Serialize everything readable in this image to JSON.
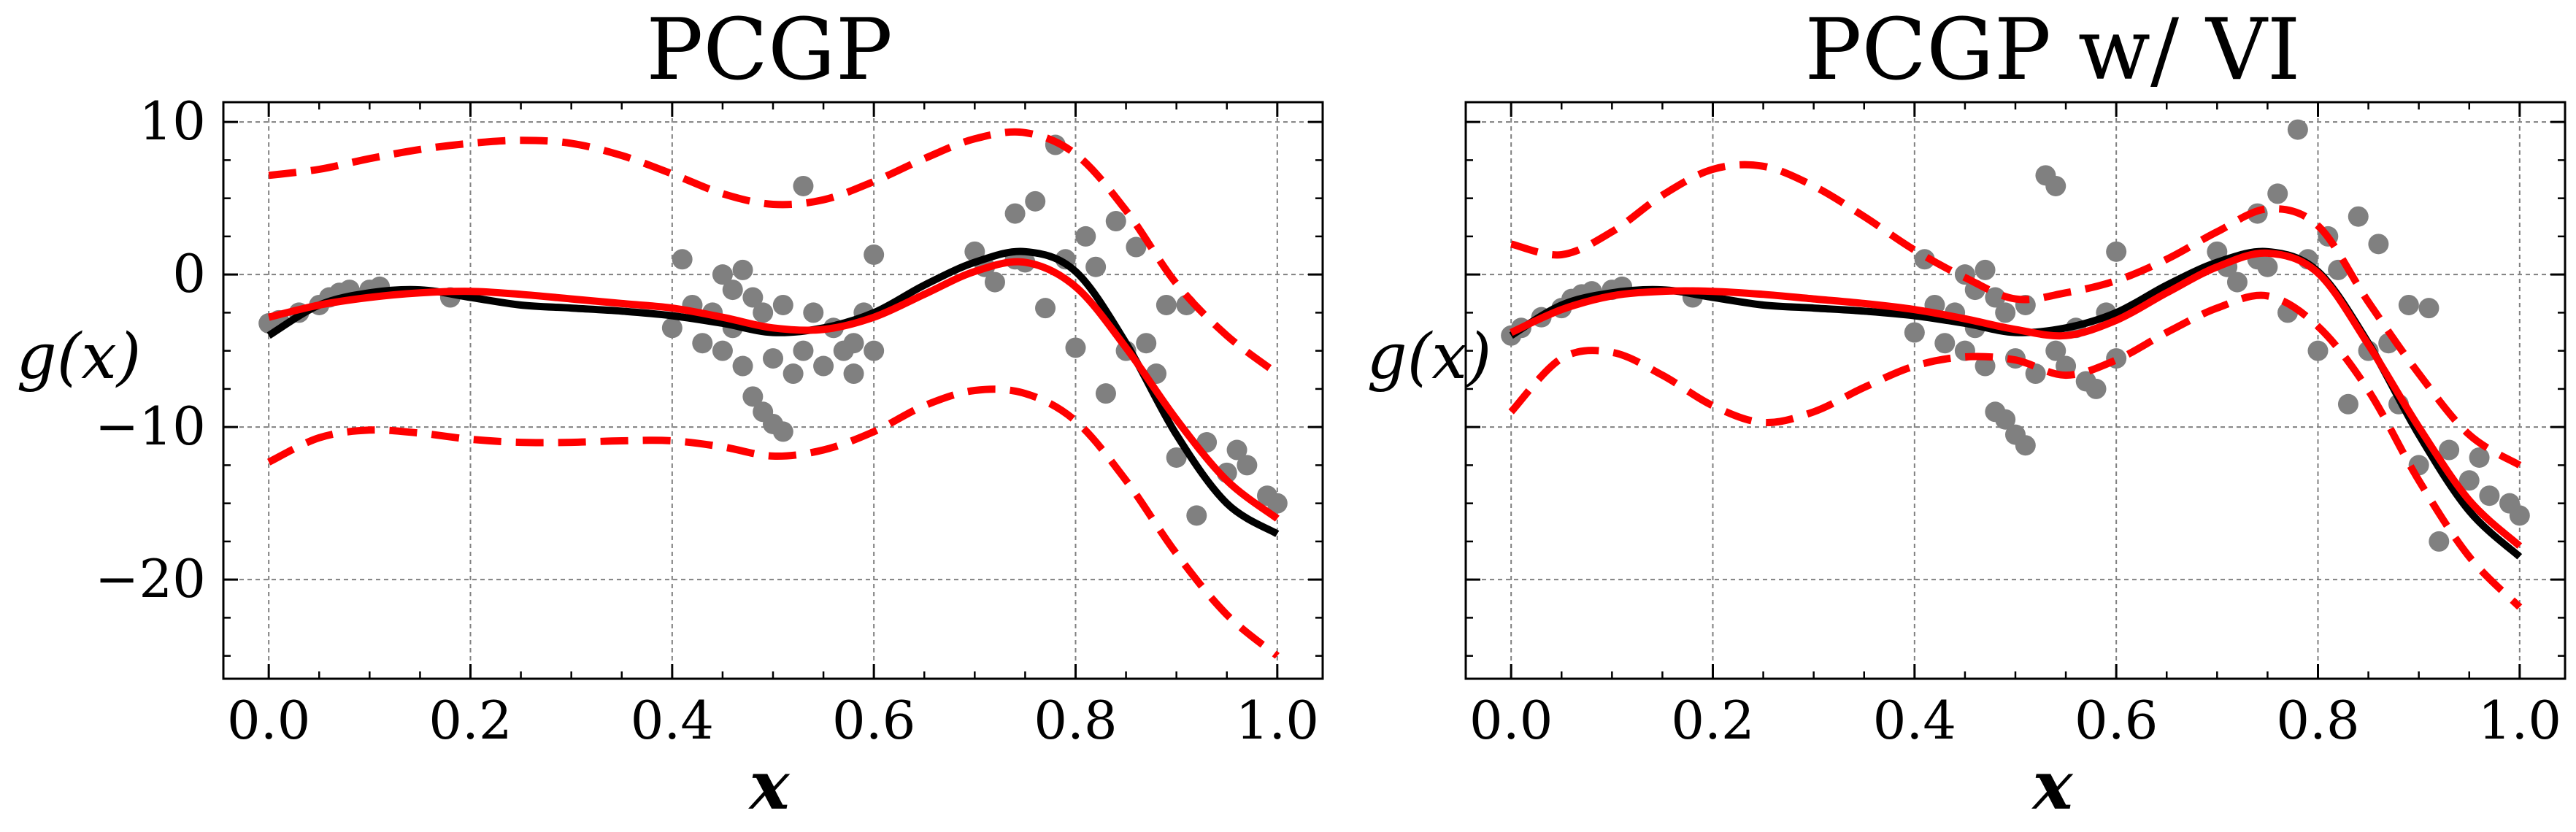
{
  "colors": {
    "truth": "#000000",
    "mean": "#ff0000",
    "band": "#ff0000",
    "points": "#808080",
    "grid": "#808080"
  },
  "chart_data": [
    {
      "type": "line",
      "title": "PCGP",
      "xlabel": "x",
      "ylabel": "g(x)",
      "xlim": [
        -0.045,
        1.045
      ],
      "ylim": [
        -26.5,
        11.3
      ],
      "xticks": [
        0.0,
        0.2,
        0.4,
        0.6,
        0.8,
        1.0
      ],
      "xtick_labels": [
        "0.0",
        "0.2",
        "0.4",
        "0.6",
        "0.8",
        "1.0"
      ],
      "yticks": [
        10,
        0,
        -10,
        -20
      ],
      "ytick_labels": [
        "10",
        "0",
        "−10",
        "−20"
      ],
      "show_ytick_labels": true,
      "grid": true,
      "series": [
        {
          "role": "truth",
          "style": "solid",
          "x": [
            0.0,
            0.05,
            0.1,
            0.15,
            0.2,
            0.25,
            0.3,
            0.35,
            0.4,
            0.45,
            0.5,
            0.55,
            0.6,
            0.65,
            0.7,
            0.75,
            0.8,
            0.85,
            0.9,
            0.95,
            1.0
          ],
          "y": [
            -4.0,
            -2.0,
            -1.2,
            -1.0,
            -1.5,
            -2.0,
            -2.2,
            -2.4,
            -2.7,
            -3.2,
            -3.8,
            -3.5,
            -2.5,
            -0.7,
            0.8,
            1.5,
            0.2,
            -4.5,
            -10.5,
            -15.0,
            -17.0
          ]
        },
        {
          "role": "mean",
          "style": "solid",
          "x": [
            0.0,
            0.05,
            0.1,
            0.15,
            0.2,
            0.25,
            0.3,
            0.35,
            0.4,
            0.45,
            0.5,
            0.55,
            0.6,
            0.65,
            0.7,
            0.75,
            0.8,
            0.85,
            0.9,
            0.95,
            1.0
          ],
          "y": [
            -2.8,
            -2.0,
            -1.5,
            -1.2,
            -1.1,
            -1.3,
            -1.6,
            -1.9,
            -2.2,
            -2.8,
            -3.5,
            -3.6,
            -2.8,
            -1.3,
            0.2,
            0.8,
            -0.8,
            -4.8,
            -9.5,
            -13.5,
            -16.0
          ]
        },
        {
          "role": "upper",
          "style": "dashed",
          "x": [
            0.0,
            0.05,
            0.1,
            0.15,
            0.2,
            0.25,
            0.3,
            0.35,
            0.4,
            0.45,
            0.5,
            0.55,
            0.6,
            0.65,
            0.7,
            0.75,
            0.8,
            0.85,
            0.9,
            0.95,
            1.0
          ],
          "y": [
            6.5,
            6.9,
            7.6,
            8.2,
            8.6,
            8.8,
            8.6,
            7.8,
            6.6,
            5.3,
            4.6,
            4.9,
            6.1,
            7.6,
            8.9,
            9.3,
            7.9,
            4.2,
            -0.6,
            -4.0,
            -6.5
          ]
        },
        {
          "role": "lower",
          "style": "dashed",
          "x": [
            0.0,
            0.05,
            0.1,
            0.15,
            0.2,
            0.25,
            0.3,
            0.35,
            0.4,
            0.45,
            0.5,
            0.55,
            0.6,
            0.65,
            0.7,
            0.75,
            0.8,
            0.85,
            0.9,
            0.95,
            1.0
          ],
          "y": [
            -12.3,
            -10.7,
            -10.2,
            -10.4,
            -10.8,
            -11.0,
            -11.0,
            -10.9,
            -10.9,
            -11.3,
            -11.9,
            -11.5,
            -10.3,
            -8.6,
            -7.6,
            -7.8,
            -9.6,
            -13.5,
            -18.3,
            -22.3,
            -25.0
          ]
        }
      ],
      "points": {
        "x": [
          0.0,
          0.01,
          0.03,
          0.05,
          0.06,
          0.07,
          0.08,
          0.1,
          0.11,
          0.18,
          0.41,
          0.4,
          0.42,
          0.43,
          0.44,
          0.45,
          0.45,
          0.46,
          0.46,
          0.47,
          0.47,
          0.48,
          0.48,
          0.49,
          0.49,
          0.5,
          0.5,
          0.51,
          0.51,
          0.52,
          0.53,
          0.53,
          0.54,
          0.55,
          0.56,
          0.57,
          0.58,
          0.58,
          0.59,
          0.6,
          0.6,
          0.7,
          0.71,
          0.72,
          0.74,
          0.74,
          0.75,
          0.76,
          0.77,
          0.78,
          0.79,
          0.8,
          0.81,
          0.82,
          0.83,
          0.84,
          0.85,
          0.86,
          0.87,
          0.88,
          0.89,
          0.9,
          0.91,
          0.92,
          0.93,
          0.95,
          0.96,
          0.97,
          0.99,
          1.0
        ],
        "y": [
          -3.2,
          -3.0,
          -2.5,
          -2.0,
          -1.5,
          -1.2,
          -1.0,
          -1.0,
          -0.8,
          -1.5,
          1.0,
          -3.5,
          -2.0,
          -4.5,
          -2.5,
          -5.0,
          0.0,
          -1.0,
          -3.5,
          0.3,
          -6.0,
          -1.5,
          -8.0,
          -2.5,
          -9.0,
          -5.5,
          -9.8,
          -2.0,
          -10.3,
          -6.5,
          5.8,
          -5.0,
          -2.5,
          -6.0,
          -3.5,
          -5.0,
          -4.5,
          -6.5,
          -2.5,
          1.3,
          -5.0,
          1.5,
          0.5,
          -0.5,
          4.0,
          1.0,
          0.8,
          4.8,
          -2.2,
          8.5,
          1.0,
          -4.8,
          2.5,
          0.5,
          -7.8,
          3.5,
          -5.0,
          1.8,
          -4.5,
          -6.5,
          -2.0,
          -12.0,
          -2.0,
          -15.8,
          -11.0,
          -13.0,
          -11.5,
          -12.5,
          -14.5,
          -15.0
        ]
      }
    },
    {
      "type": "line",
      "title": "PCGP w/ VI",
      "xlabel": "x",
      "ylabel": "g(x)",
      "xlim": [
        -0.045,
        1.045
      ],
      "ylim": [
        -26.5,
        11.3
      ],
      "xticks": [
        0.0,
        0.2,
        0.4,
        0.6,
        0.8,
        1.0
      ],
      "xtick_labels": [
        "0.0",
        "0.2",
        "0.4",
        "0.6",
        "0.8",
        "1.0"
      ],
      "yticks": [
        10,
        0,
        -10,
        -20
      ],
      "ytick_labels": [
        "10",
        "0",
        "−10",
        "−20"
      ],
      "show_ytick_labels": false,
      "grid": true,
      "series": [
        {
          "role": "truth",
          "style": "solid",
          "x": [
            0.0,
            0.05,
            0.1,
            0.15,
            0.2,
            0.25,
            0.3,
            0.35,
            0.4,
            0.45,
            0.5,
            0.55,
            0.6,
            0.65,
            0.7,
            0.75,
            0.8,
            0.85,
            0.9,
            0.95,
            1.0
          ],
          "y": [
            -4.0,
            -2.0,
            -1.2,
            -1.0,
            -1.5,
            -2.0,
            -2.2,
            -2.4,
            -2.7,
            -3.2,
            -3.8,
            -3.5,
            -2.5,
            -0.7,
            0.8,
            1.5,
            0.2,
            -4.5,
            -10.5,
            -15.5,
            -18.5
          ]
        },
        {
          "role": "mean",
          "style": "solid",
          "x": [
            0.0,
            0.05,
            0.1,
            0.15,
            0.2,
            0.25,
            0.3,
            0.35,
            0.4,
            0.45,
            0.5,
            0.55,
            0.6,
            0.65,
            0.7,
            0.75,
            0.8,
            0.85,
            0.9,
            0.95,
            1.0
          ],
          "y": [
            -3.8,
            -2.3,
            -1.4,
            -1.1,
            -1.1,
            -1.3,
            -1.6,
            -1.9,
            -2.3,
            -2.9,
            -3.6,
            -4.0,
            -3.0,
            -1.2,
            0.5,
            1.4,
            0.1,
            -4.6,
            -10.0,
            -14.8,
            -17.8
          ]
        },
        {
          "role": "upper",
          "style": "dashed",
          "x": [
            0.0,
            0.05,
            0.1,
            0.15,
            0.2,
            0.25,
            0.3,
            0.35,
            0.4,
            0.45,
            0.5,
            0.55,
            0.6,
            0.65,
            0.7,
            0.75,
            0.8,
            0.85,
            0.9,
            0.95,
            1.0
          ],
          "y": [
            2.0,
            1.3,
            2.8,
            5.2,
            6.9,
            7.1,
            5.8,
            3.8,
            1.6,
            -0.2,
            -1.6,
            -1.2,
            -0.4,
            1.0,
            2.8,
            4.3,
            3.2,
            -1.8,
            -6.5,
            -10.5,
            -12.5
          ]
        },
        {
          "role": "lower",
          "style": "dashed",
          "x": [
            0.0,
            0.05,
            0.1,
            0.15,
            0.2,
            0.25,
            0.3,
            0.35,
            0.4,
            0.45,
            0.5,
            0.55,
            0.6,
            0.65,
            0.7,
            0.75,
            0.8,
            0.85,
            0.9,
            0.95,
            1.0
          ],
          "y": [
            -9.0,
            -5.5,
            -5.1,
            -6.6,
            -8.6,
            -9.7,
            -9.0,
            -7.4,
            -6.0,
            -5.4,
            -5.6,
            -6.6,
            -5.6,
            -3.8,
            -2.2,
            -1.4,
            -3.4,
            -7.6,
            -13.5,
            -18.5,
            -21.8
          ]
        }
      ],
      "points": {
        "x": [
          0.0,
          0.01,
          0.03,
          0.05,
          0.06,
          0.07,
          0.08,
          0.1,
          0.11,
          0.18,
          0.4,
          0.41,
          0.42,
          0.43,
          0.44,
          0.45,
          0.45,
          0.46,
          0.46,
          0.47,
          0.47,
          0.48,
          0.48,
          0.49,
          0.49,
          0.5,
          0.5,
          0.51,
          0.51,
          0.52,
          0.53,
          0.54,
          0.54,
          0.55,
          0.56,
          0.57,
          0.58,
          0.59,
          0.6,
          0.6,
          0.7,
          0.71,
          0.72,
          0.74,
          0.74,
          0.75,
          0.76,
          0.77,
          0.78,
          0.79,
          0.8,
          0.81,
          0.82,
          0.83,
          0.84,
          0.85,
          0.86,
          0.87,
          0.88,
          0.89,
          0.9,
          0.91,
          0.92,
          0.93,
          0.95,
          0.96,
          0.97,
          0.99,
          1.0
        ],
        "y": [
          -4.0,
          -3.5,
          -2.8,
          -2.2,
          -1.6,
          -1.3,
          -1.1,
          -1.0,
          -0.8,
          -1.5,
          -3.8,
          1.0,
          -2.0,
          -4.5,
          -2.5,
          -5.0,
          0.0,
          -1.0,
          -3.5,
          0.3,
          -6.0,
          -1.5,
          -9.0,
          -2.5,
          -9.5,
          -5.5,
          -10.5,
          -2.0,
          -11.2,
          -6.5,
          6.5,
          -5.0,
          5.8,
          -6.0,
          -3.5,
          -7.0,
          -7.5,
          -2.5,
          1.5,
          -5.5,
          1.5,
          0.5,
          -0.5,
          4.0,
          1.0,
          0.5,
          5.3,
          -2.5,
          9.5,
          1.0,
          -5.0,
          2.5,
          0.3,
          -8.5,
          3.8,
          -5.0,
          2.0,
          -4.5,
          -8.5,
          -2.0,
          -12.5,
          -2.2,
          -17.5,
          -11.5,
          -13.5,
          -12.0,
          -14.5,
          -15.0,
          -15.8
        ]
      }
    }
  ]
}
